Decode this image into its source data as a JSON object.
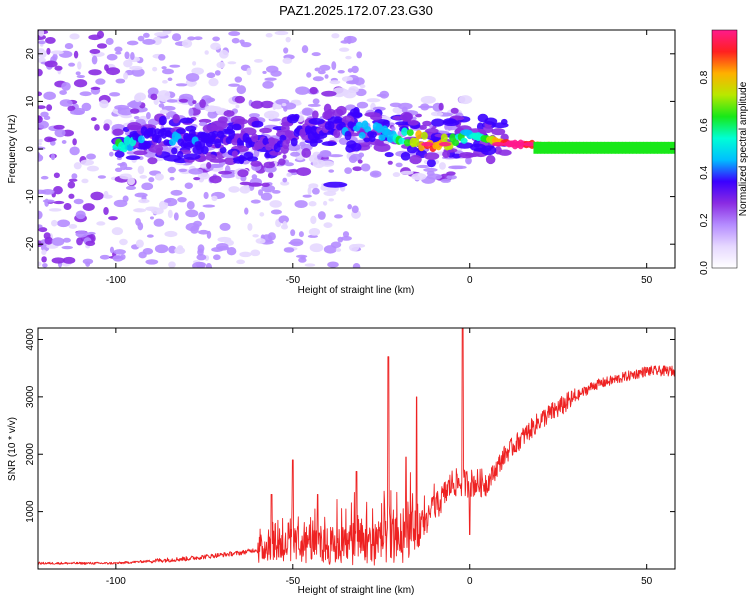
{
  "figure_title": "PAZ1.2025.172.07.23.G30",
  "colors": {
    "snr_line": "#ee2222",
    "colormap": [
      "#ffffff",
      "#e6d8ff",
      "#b58cff",
      "#8a2be2",
      "#3a00ff",
      "#00bfff",
      "#00ffd5",
      "#18e818",
      "#b8e800",
      "#ffb000",
      "#ff2020",
      "#ff1a8c"
    ]
  },
  "chart_data": [
    {
      "type": "heatmap",
      "title": "PAZ1.2025.172.07.23.G30",
      "xlabel": "Height of straight line (km)",
      "ylabel": "Frequency (Hz)",
      "xlim": [
        -122,
        58
      ],
      "ylim": [
        -25,
        25
      ],
      "xticks": [
        -100,
        -50,
        0,
        50
      ],
      "yticks": [
        -20,
        -10,
        0,
        10,
        20
      ],
      "colorbar": {
        "label": "Normalized spectral amplitude",
        "range": [
          0,
          1
        ],
        "ticks": [
          "0.0",
          "0.2",
          "0.4",
          "0.6",
          "0.8"
        ]
      },
      "features": {
        "signal_track": [
          {
            "x": -95,
            "f": 3,
            "amp": 0.3
          },
          {
            "x": -85,
            "f": 2,
            "amp": 0.35
          },
          {
            "x": -70,
            "f": 2,
            "amp": 0.3
          },
          {
            "x": -55,
            "f": 1,
            "amp": 0.25
          },
          {
            "x": -45,
            "f": 4,
            "amp": 0.3
          },
          {
            "x": -30,
            "f": 4,
            "amp": 0.35
          },
          {
            "x": -20,
            "f": 3,
            "amp": 0.5
          },
          {
            "x": -10,
            "f": 1,
            "amp": 0.85
          },
          {
            "x": 0,
            "f": 3,
            "amp": 0.4
          },
          {
            "x": 12,
            "f": 1,
            "amp": 0.95
          },
          {
            "x": 35,
            "f": 0.5,
            "amp": 0.5
          },
          {
            "x": 58,
            "f": 0.5,
            "amp": 0.5
          }
        ],
        "noise_region_x": [
          -122,
          -70
        ]
      }
    },
    {
      "type": "line",
      "xlabel": "Height of straight line (km)",
      "ylabel": "SNR (10 * v/v)",
      "xlim": [
        -122,
        58
      ],
      "ylim": [
        0,
        4200
      ],
      "xticks": [
        -100,
        -50,
        0,
        50
      ],
      "yticks": [
        1000,
        2000,
        3000,
        4000
      ],
      "series": [
        {
          "color": "#ee2222",
          "trend": [
            {
              "x": -122,
              "y": 100
            },
            {
              "x": -100,
              "y": 100
            },
            {
              "x": -80,
              "y": 180
            },
            {
              "x": -65,
              "y": 280
            },
            {
              "x": -55,
              "y": 400
            },
            {
              "x": -40,
              "y": 400
            },
            {
              "x": -25,
              "y": 450
            },
            {
              "x": -15,
              "y": 550
            },
            {
              "x": -5,
              "y": 1500
            },
            {
              "x": 5,
              "y": 1500
            },
            {
              "x": 10,
              "y": 2000
            },
            {
              "x": 20,
              "y": 2600
            },
            {
              "x": 35,
              "y": 3200
            },
            {
              "x": 50,
              "y": 3450
            },
            {
              "x": 58,
              "y": 3450
            }
          ],
          "spikes": [
            {
              "x": -56,
              "y": 1300
            },
            {
              "x": -50,
              "y": 1900
            },
            {
              "x": -43,
              "y": 1300
            },
            {
              "x": -32,
              "y": 1700
            },
            {
              "x": -23,
              "y": 3700
            },
            {
              "x": -18,
              "y": 1950
            },
            {
              "x": -15,
              "y": 3000
            },
            {
              "x": -2,
              "y": 4200
            }
          ],
          "dips": [
            {
              "x": 0,
              "y": 600
            }
          ]
        }
      ]
    }
  ]
}
